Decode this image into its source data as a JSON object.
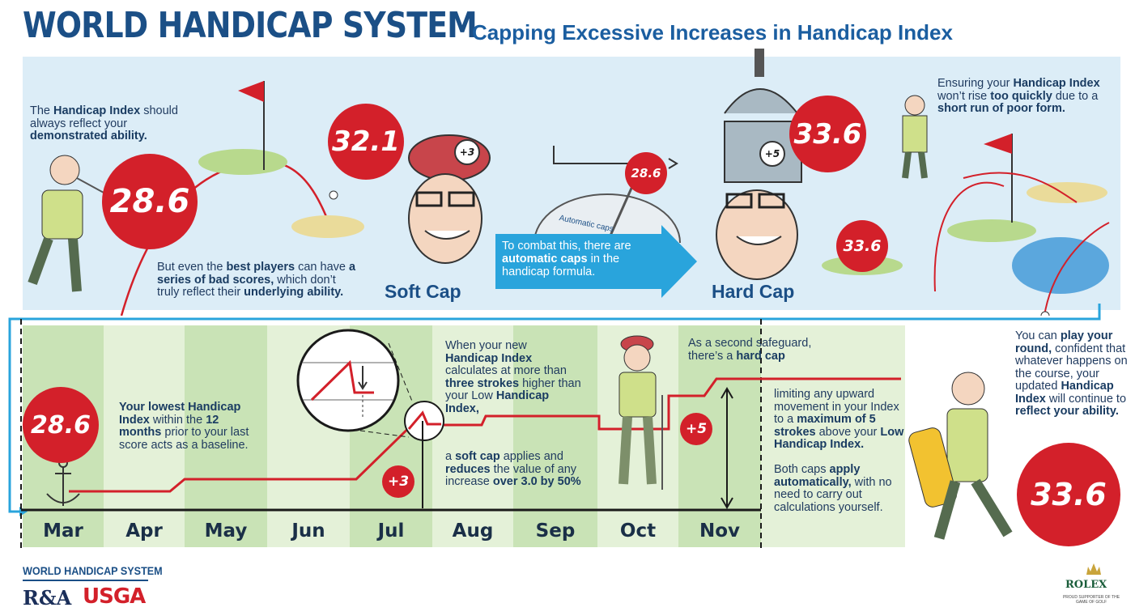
{
  "header": {
    "title": "WORLD HANDICAP SYSTEM",
    "subtitle": "Capping Excessive Increases in Handicap Index"
  },
  "colors": {
    "navy": "#1b4f86",
    "red_disc": "#d3202a",
    "sky_band": "#dcedf7",
    "arrow_blue": "#29a4dc",
    "green_dark": "#c9e3b6",
    "green_light": "#e4f1d8"
  },
  "top": {
    "intro": {
      "p1": "The ",
      "b1": "Handicap Index",
      "p2": " should always reflect your ",
      "b2": "demonstrated ability."
    },
    "bad_scores": {
      "p1": "But even the ",
      "b1": "best players",
      "p2": " can have ",
      "b2": "a series of bad scores,",
      "p3": " which don’t truly reflect their ",
      "b3": "underlying ability."
    },
    "disc_start": "28.6",
    "disc_soft": "32.1",
    "soft_badge": "+3",
    "soft_cap_label": "Soft Cap",
    "dial_value": "28.6",
    "dial_label": "Automatic caps",
    "combat": {
      "p1": "To combat this, there are ",
      "b1": "automatic caps",
      "p2": " in the handicap formula."
    },
    "disc_hard": "33.6",
    "hard_badge": "+5",
    "disc_ball": "33.6",
    "hard_cap_label": "Hard Cap",
    "ensuring": {
      "p1": "Ensuring your ",
      "b1": "Handicap Index",
      "p2": " won’t rise ",
      "b2": "too quickly",
      "p3": " due to a ",
      "b3": "short run of poor form."
    }
  },
  "timeline": {
    "months": [
      "Mar",
      "Apr",
      "May",
      "Jun",
      "Jul",
      "Aug",
      "Sep",
      "Oct",
      "Nov"
    ],
    "disc_baseline": "28.6",
    "baseline_text": {
      "b1": "Your lowest Handicap Index",
      "p1": " within the ",
      "b2": "12 months",
      "p2": " prior to your last score acts as a baseline."
    },
    "plus3": "+3",
    "plus5": "+5",
    "soft_text_a": {
      "p1": "When your new ",
      "b1": "Handicap Index",
      "p2": " calculates at more than ",
      "b2": "three strokes",
      "p3": " higher than your Low ",
      "b3": "Handicap Index,"
    },
    "soft_text_b": {
      "p1": "a ",
      "b1": "soft cap",
      "p2": " applies and ",
      "b2": "reduces",
      "p3": " the value of any increase ",
      "b3": "over 3.0 by 50%"
    },
    "hard_text_a": {
      "p1": "As a second safeguard, there’s a ",
      "b1": "hard cap"
    },
    "hard_text_b": {
      "p1": "limiting any upward movement in your Index to a ",
      "b1": "maximum of 5 strokes",
      "p2": " above your ",
      "b2": "Low Handicap Index."
    },
    "both_caps": {
      "p1": "Both caps ",
      "b1": "apply automatically,",
      "p2": " with no need to carry out calculations yourself."
    }
  },
  "right": {
    "play": {
      "p1": "You can ",
      "b1": "play your round,",
      "p2": " confident that whatever happens on the course, your updated ",
      "b2": "Handicap Index",
      "p3": " will continue to ",
      "b3": "reflect your ability."
    },
    "disc_final": "33.6"
  },
  "footer": {
    "wh_logo": "WORLD HANDICAP SYSTEM",
    "ra_logo": "R&A",
    "usga_logo": "USGA",
    "rolex": "ROLEX",
    "rolex_tag": "PROUD SUPPORTER OF THE GAME OF GOLF"
  }
}
